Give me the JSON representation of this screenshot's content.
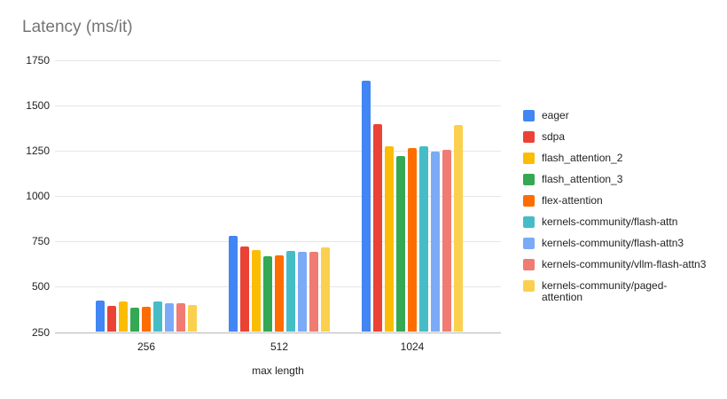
{
  "title": "Latency (ms/it)",
  "chart_data": {
    "type": "bar",
    "title": "Latency (ms/it)",
    "xlabel": "max length",
    "ylabel": "",
    "categories": [
      "256",
      "512",
      "1024"
    ],
    "series": [
      {
        "name": "eager",
        "color": "#4285F4",
        "values": [
          420,
          779,
          1635
        ]
      },
      {
        "name": "sdpa",
        "color": "#EA4335",
        "values": [
          391,
          721,
          1393
        ]
      },
      {
        "name": "flash_attention_2",
        "color": "#FBBC04",
        "values": [
          417,
          698,
          1271
        ]
      },
      {
        "name": "flash_attention_3",
        "color": "#34A853",
        "values": [
          380,
          665,
          1219
        ]
      },
      {
        "name": "flex-attention",
        "color": "#FF6D01",
        "values": [
          386,
          672,
          1262
        ]
      },
      {
        "name": "kernels-community/flash-attn",
        "color": "#46BDC6",
        "values": [
          415,
          697,
          1271
        ]
      },
      {
        "name": "kernels-community/flash-attn3",
        "color": "#7BAAF7",
        "values": [
          406,
          689,
          1240
        ]
      },
      {
        "name": "kernels-community/vllm-flash-attn3",
        "color": "#F07B72",
        "values": [
          408,
          692,
          1250
        ]
      },
      {
        "name": "kernels-community/paged-attention",
        "color": "#FCD04F",
        "values": [
          396,
          716,
          1390
        ]
      }
    ],
    "ylim": [
      250,
      1750
    ],
    "yticks": [
      250,
      500,
      750,
      1000,
      1250,
      1500,
      1750
    ],
    "grid": true,
    "legend_position": "right"
  },
  "colors": {
    "background": "#ffffff",
    "title_text": "#757575",
    "axis_text": "#222222",
    "gridline": "#e6e6e6",
    "baseline": "#b7b7b7"
  }
}
